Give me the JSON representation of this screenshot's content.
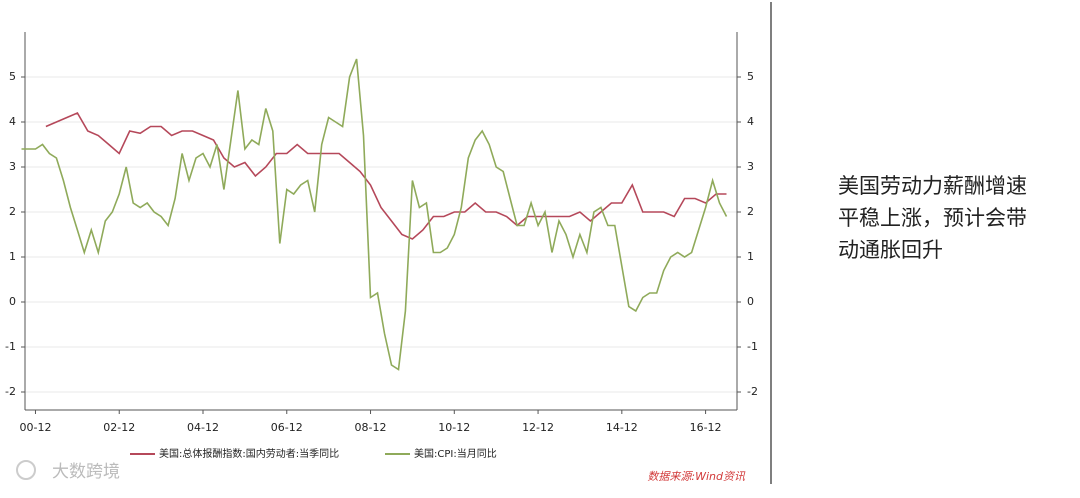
{
  "chart_data": {
    "type": "line",
    "xlim": [
      "00-09",
      "17-09"
    ],
    "xticks": [
      "00-12",
      "02-12",
      "04-12",
      "06-12",
      "08-12",
      "10-12",
      "12-12",
      "14-12",
      "16-12"
    ],
    "ylim": [
      -2.4,
      6
    ],
    "yticks": [
      -2,
      -1,
      0,
      1,
      2,
      3,
      4,
      5
    ],
    "y2lim": [
      -2.4,
      6
    ],
    "y2ticks": [
      -2,
      -1,
      0,
      1,
      2,
      3,
      4,
      5
    ],
    "grid": true,
    "series": [
      {
        "name": "美国:总体报酬指数:国内劳动者:当季同比",
        "color": "#b5485a",
        "x": [
          "01-03",
          "01-06",
          "01-09",
          "01-12",
          "02-03",
          "02-06",
          "02-09",
          "02-12",
          "03-03",
          "03-06",
          "03-09",
          "03-12",
          "04-03",
          "04-06",
          "04-09",
          "04-12",
          "05-03",
          "05-06",
          "05-09",
          "05-12",
          "06-03",
          "06-06",
          "06-09",
          "06-12",
          "07-03",
          "07-06",
          "07-09",
          "07-12",
          "08-03",
          "08-06",
          "08-09",
          "08-12",
          "09-03",
          "09-06",
          "09-09",
          "09-12",
          "10-03",
          "10-06",
          "10-09",
          "10-12",
          "11-03",
          "11-06",
          "11-09",
          "11-12",
          "12-03",
          "12-06",
          "12-09",
          "12-12",
          "13-03",
          "13-06",
          "13-09",
          "13-12",
          "14-03",
          "14-06",
          "14-09",
          "14-12",
          "15-03",
          "15-06",
          "15-09",
          "15-12",
          "16-03",
          "16-06",
          "16-09",
          "16-12",
          "17-03",
          "17-06"
        ],
        "values": [
          3.9,
          4.0,
          4.1,
          4.2,
          3.8,
          3.7,
          3.5,
          3.3,
          3.8,
          3.75,
          3.9,
          3.9,
          3.7,
          3.8,
          3.8,
          3.7,
          3.6,
          3.2,
          3.0,
          3.1,
          2.8,
          3.0,
          3.3,
          3.3,
          3.5,
          3.3,
          3.3,
          3.3,
          3.3,
          3.1,
          2.9,
          2.6,
          2.1,
          1.8,
          1.5,
          1.4,
          1.6,
          1.9,
          1.9,
          2.0,
          2.0,
          2.2,
          2.0,
          2.0,
          1.9,
          1.7,
          1.9,
          1.9,
          1.9,
          1.9,
          1.9,
          2.0,
          1.8,
          2.0,
          2.2,
          2.2,
          2.6,
          2.0,
          2.0,
          2.0,
          1.9,
          2.3,
          2.3,
          2.2,
          2.4,
          2.4
        ]
      },
      {
        "name": "美国:CPI:当月同比",
        "color": "#8faa5a",
        "x": [
          "00-08",
          "00-10",
          "00-12",
          "01-02",
          "01-04",
          "01-06",
          "01-08",
          "01-10",
          "01-12",
          "02-02",
          "02-04",
          "02-06",
          "02-08",
          "02-10",
          "02-12",
          "03-02",
          "03-04",
          "03-06",
          "03-08",
          "03-10",
          "03-12",
          "04-02",
          "04-04",
          "04-06",
          "04-08",
          "04-10",
          "04-12",
          "05-02",
          "05-04",
          "05-06",
          "05-08",
          "05-10",
          "05-12",
          "06-02",
          "06-04",
          "06-06",
          "06-08",
          "06-10",
          "06-12",
          "07-02",
          "07-04",
          "07-06",
          "07-08",
          "07-10",
          "07-12",
          "08-02",
          "08-04",
          "08-06",
          "08-08",
          "08-10",
          "08-12",
          "09-02",
          "09-04",
          "09-06",
          "09-08",
          "09-10",
          "09-12",
          "10-02",
          "10-04",
          "10-06",
          "10-08",
          "10-10",
          "10-12",
          "11-02",
          "11-04",
          "11-06",
          "11-08",
          "11-10",
          "11-12",
          "12-02",
          "12-04",
          "12-06",
          "12-08",
          "12-10",
          "12-12",
          "13-02",
          "13-04",
          "13-06",
          "13-08",
          "13-10",
          "13-12",
          "14-02",
          "14-04",
          "14-06",
          "14-08",
          "14-10",
          "14-12",
          "15-02",
          "15-04",
          "15-06",
          "15-08",
          "15-10",
          "15-12",
          "16-02",
          "16-04",
          "16-06",
          "16-08",
          "16-10",
          "16-12",
          "17-02",
          "17-04",
          "17-06"
        ],
        "values": [
          3.4,
          3.4,
          3.4,
          3.5,
          3.3,
          3.2,
          2.7,
          2.1,
          1.6,
          1.1,
          1.6,
          1.1,
          1.8,
          2.0,
          2.4,
          3.0,
          2.2,
          2.1,
          2.2,
          2.0,
          1.9,
          1.7,
          2.3,
          3.3,
          2.7,
          3.2,
          3.3,
          3.0,
          3.5,
          2.5,
          3.6,
          4.7,
          3.4,
          3.6,
          3.5,
          4.3,
          3.8,
          1.3,
          2.5,
          2.4,
          2.6,
          2.7,
          2.0,
          3.5,
          4.1,
          4.0,
          3.9,
          5.0,
          5.4,
          3.7,
          0.1,
          0.2,
          -0.7,
          -1.4,
          -1.5,
          -0.2,
          2.7,
          2.1,
          2.2,
          1.1,
          1.1,
          1.2,
          1.5,
          2.1,
          3.2,
          3.6,
          3.8,
          3.5,
          3.0,
          2.9,
          2.3,
          1.7,
          1.7,
          2.2,
          1.7,
          2.0,
          1.1,
          1.8,
          1.5,
          1.0,
          1.5,
          1.1,
          2.0,
          2.1,
          1.7,
          1.7,
          0.8,
          -0.1,
          -0.2,
          0.1,
          0.2,
          0.2,
          0.7,
          1.0,
          1.1,
          1.0,
          1.1,
          1.6,
          2.1,
          2.7,
          2.2,
          1.9
        ]
      }
    ],
    "source": "数据来源:Wind资讯",
    "side_text": [
      "美国劳动力薪酬增速",
      "平稳上涨，预计会带",
      "动通胀回升"
    ],
    "watermark": "大数跨境"
  }
}
